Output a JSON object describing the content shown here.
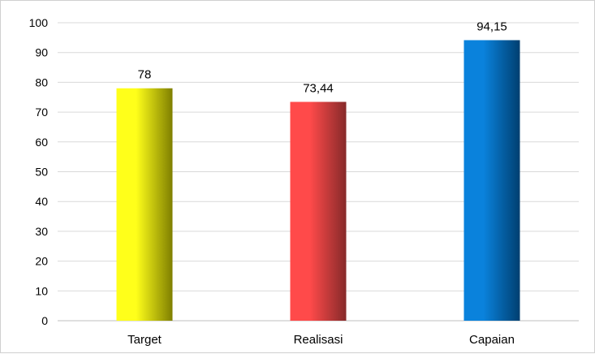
{
  "chart_data": {
    "type": "bar",
    "categories": [
      "Target",
      "Realisasi",
      "Capaian"
    ],
    "values": [
      78,
      73.44,
      94.15
    ],
    "value_labels": [
      "78",
      "73,44",
      "94,15"
    ],
    "title": "",
    "xlabel": "",
    "ylabel": "",
    "ylim": [
      0,
      100
    ],
    "yticks": [
      "0",
      "10",
      "20",
      "30",
      "40",
      "50",
      "60",
      "70",
      "80",
      "90",
      "100"
    ],
    "grid": true,
    "legend": "none",
    "colors": [
      {
        "light": "#ffff1a",
        "dark": "#7f7f00"
      },
      {
        "light": "#ff4a4a",
        "dark": "#862a2a"
      },
      {
        "light": "#0a82dc",
        "dark": "#003f70"
      }
    ],
    "grid_color": "#d9d9d9",
    "axis_color": "#bfbfbf"
  }
}
